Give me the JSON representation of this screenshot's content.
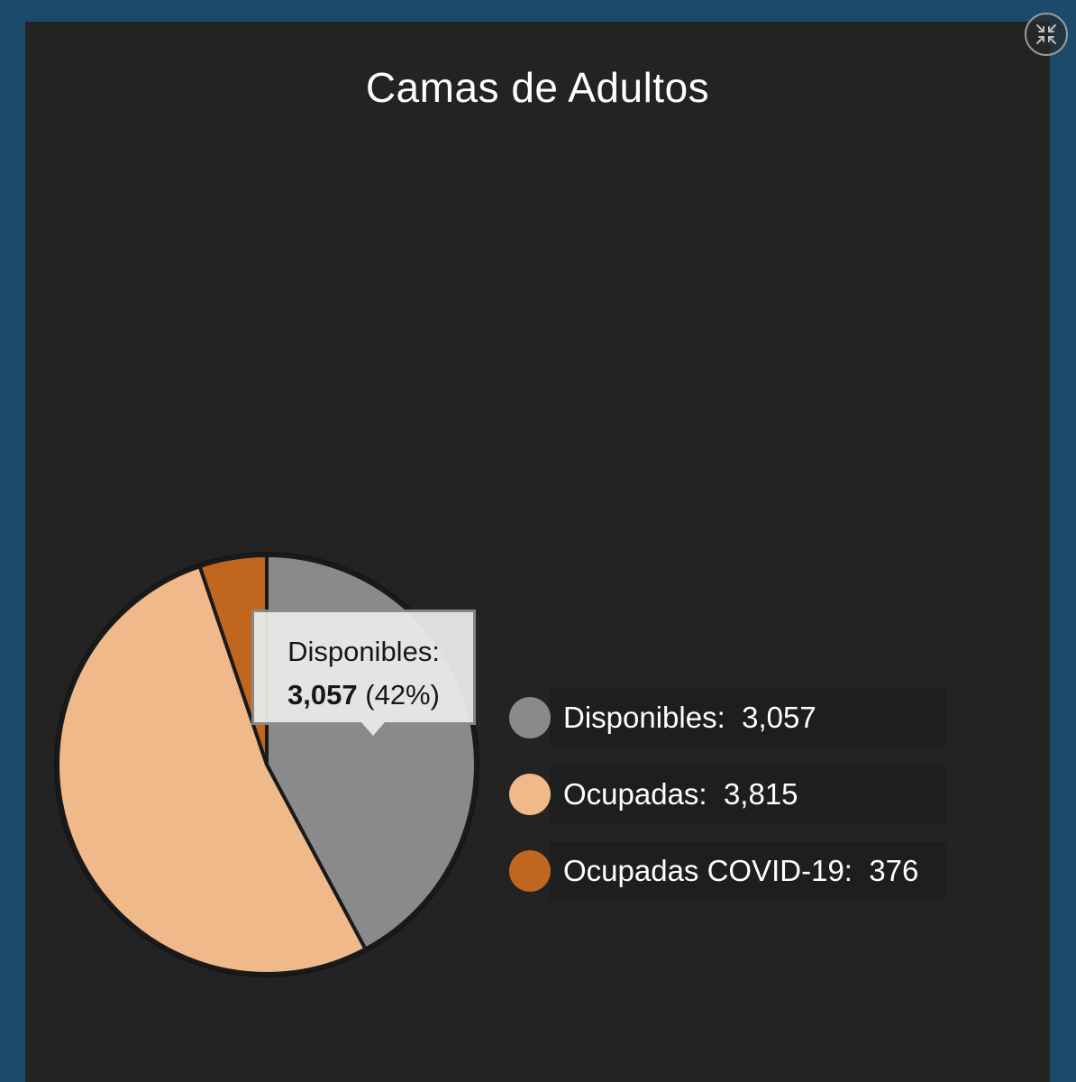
{
  "panel": {
    "title": "Camas de Adultos"
  },
  "toolbar": {
    "collapse_icon": "collapse-arrows-icon"
  },
  "tooltip": {
    "label": "Disponibles:",
    "value": "3,057",
    "percent": "(42%)"
  },
  "legend": [
    {
      "label": "Disponibles:",
      "value": "3,057",
      "color": "#8a8a8a"
    },
    {
      "label": "Ocupadas:",
      "value": "3,815",
      "color": "#efb98a"
    },
    {
      "label": "Ocupadas COVID-19:",
      "value": "376",
      "color": "#c1661f"
    }
  ],
  "chart_data": {
    "type": "pie",
    "title": "Camas de Adultos",
    "slices": [
      {
        "name": "Disponibles",
        "value": 3057,
        "percent": 42,
        "color": "#8a8a8a"
      },
      {
        "name": "Ocupadas",
        "value": 3815,
        "color": "#efb98a"
      },
      {
        "name": "Ocupadas COVID-19",
        "value": 376,
        "color": "#c1661f"
      }
    ],
    "start": "top, clockwise",
    "legend_position": "right"
  }
}
